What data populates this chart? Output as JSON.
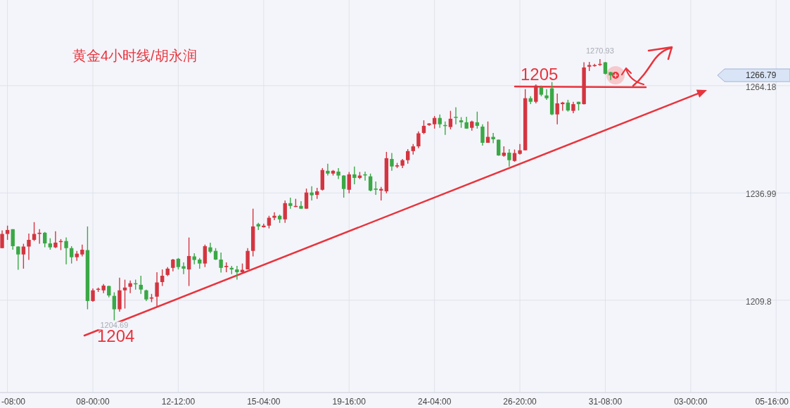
{
  "chart_data": {
    "type": "candlestick",
    "title": "黄金4小时线/胡永润",
    "categories": [
      null,
      "-08:00",
      null,
      null,
      null,
      null,
      null,
      null,
      null,
      null,
      null,
      null,
      null,
      null,
      null,
      null,
      null,
      "08-00:00",
      null,
      null,
      null,
      null,
      null,
      null,
      null,
      null,
      null,
      null,
      null,
      null,
      null,
      null,
      null,
      "12-12:00",
      null,
      null,
      null,
      null,
      null,
      null,
      null,
      null,
      null,
      null,
      null,
      null,
      null,
      null,
      null,
      "15-04:00",
      null,
      null,
      null,
      null,
      null,
      null,
      null,
      null,
      null,
      null,
      null,
      null,
      null,
      null,
      null,
      "19-16:00",
      null,
      null,
      null,
      null,
      null,
      null,
      null,
      null,
      null,
      null,
      null,
      null,
      null,
      null,
      null,
      "24-04:00",
      null,
      null,
      null,
      null,
      null,
      null,
      null,
      null,
      null,
      null,
      null,
      null,
      null,
      null,
      null,
      "26-20:00",
      null,
      null,
      null,
      null,
      null,
      null,
      null,
      null,
      null,
      null,
      null,
      null,
      null,
      null,
      null,
      "31-08:00",
      null,
      null,
      null,
      null,
      null,
      null,
      null,
      null,
      null,
      null,
      null,
      null,
      null,
      null,
      null,
      "03-00:00",
      null,
      null,
      null,
      null,
      null,
      null,
      null,
      null,
      null,
      null,
      null,
      null,
      null,
      null,
      null,
      "05-16:00",
      null
    ],
    "ohlc": [
      [
        1223.0,
        1227.5,
        1223.0,
        1226.6
      ],
      [
        1226.6,
        1228.7,
        1225.1,
        1227.6
      ],
      [
        1227.8,
        1227.8,
        1222.6,
        1223.5
      ],
      [
        1223.4,
        1223.5,
        1217.5,
        1221.4
      ],
      [
        1221.4,
        1224.1,
        1217.8,
        1223.4
      ],
      [
        1223.4,
        1226.7,
        1220.0,
        1225.1
      ],
      [
        1225.1,
        1229.6,
        1224.8,
        1226.6
      ],
      [
        1226.6,
        1227.8,
        1224.1,
        1226.9
      ],
      [
        1226.9,
        1227.1,
        1223.2,
        1224.2
      ],
      [
        1224.2,
        1225.5,
        1222.6,
        1223.2
      ],
      [
        1223.2,
        1227.3,
        1223.0,
        1224.4
      ],
      [
        1224.6,
        1225.3,
        1222.5,
        1224.8
      ],
      [
        1224.8,
        1225.7,
        1218.9,
        1223.0
      ],
      [
        1223.0,
        1223.5,
        1219.1,
        1220.7
      ],
      [
        1220.7,
        1222.3,
        1219.8,
        1221.6
      ],
      [
        1221.4,
        1223.9,
        1220.9,
        1222.6
      ],
      [
        1222.5,
        1228.5,
        1207.5,
        1209.6
      ],
      [
        1209.6,
        1212.8,
        1209.4,
        1212.3
      ],
      [
        1212.5,
        1213.0,
        1211.9,
        1212.7
      ],
      [
        1212.3,
        1213.9,
        1211.6,
        1213.5
      ],
      [
        1213.4,
        1213.5,
        1210.5,
        1211.0
      ],
      [
        1210.9,
        1211.8,
        1204.69,
        1207.5
      ],
      [
        1207.5,
        1215.5,
        1206.9,
        1212.3
      ],
      [
        1212.3,
        1215.0,
        1207.7,
        1213.0
      ],
      [
        1213.2,
        1214.8,
        1211.6,
        1214.1
      ],
      [
        1214.1,
        1215.0,
        1212.5,
        1213.9
      ],
      [
        1213.7,
        1216.0,
        1211.4,
        1212.5
      ],
      [
        1212.3,
        1212.5,
        1209.6,
        1210.0
      ],
      [
        1210.2,
        1211.4,
        1209.3,
        1210.5
      ],
      [
        1210.7,
        1216.9,
        1208.2,
        1214.3
      ],
      [
        1214.4,
        1217.6,
        1213.4,
        1216.0
      ],
      [
        1216.2,
        1218.2,
        1215.9,
        1217.8
      ],
      [
        1218.0,
        1220.3,
        1217.1,
        1220.1
      ],
      [
        1220.3,
        1220.5,
        1217.6,
        1218.2
      ],
      [
        1218.4,
        1219.4,
        1216.4,
        1217.8
      ],
      [
        1217.6,
        1225.7,
        1213.4,
        1221.0
      ],
      [
        1220.9,
        1221.7,
        1218.9,
        1220.0
      ],
      [
        1220.1,
        1220.5,
        1217.8,
        1219.1
      ],
      [
        1219.1,
        1223.9,
        1218.2,
        1223.5
      ],
      [
        1223.2,
        1224.4,
        1221.7,
        1222.1
      ],
      [
        1222.3,
        1223.0,
        1220.0,
        1220.1
      ],
      [
        1220.1,
        1221.9,
        1216.8,
        1218.0
      ],
      [
        1218.2,
        1219.4,
        1216.9,
        1218.5
      ],
      [
        1218.0,
        1218.5,
        1216.4,
        1217.6
      ],
      [
        1217.6,
        1218.5,
        1215.0,
        1216.9
      ],
      [
        1216.9,
        1219.1,
        1216.8,
        1217.5
      ],
      [
        1217.6,
        1223.0,
        1217.6,
        1222.3
      ],
      [
        1222.3,
        1233.0,
        1220.9,
        1228.5
      ],
      [
        1229.1,
        1229.4,
        1227.6,
        1228.5
      ],
      [
        1228.3,
        1229.2,
        1228.2,
        1228.7
      ],
      [
        1228.7,
        1231.2,
        1228.0,
        1230.7
      ],
      [
        1230.7,
        1232.1,
        1230.1,
        1231.2
      ],
      [
        1231.2,
        1231.5,
        1229.4,
        1230.3
      ],
      [
        1230.3,
        1235.1,
        1229.4,
        1234.4
      ],
      [
        1234.4,
        1235.8,
        1233.0,
        1233.7
      ],
      [
        1233.5,
        1235.5,
        1233.4,
        1233.7
      ],
      [
        1233.7,
        1234.9,
        1233.0,
        1233.0
      ],
      [
        1233.0,
        1238.1,
        1233.0,
        1237.1
      ],
      [
        1237.1,
        1238.7,
        1235.1,
        1236.4
      ],
      [
        1236.5,
        1238.3,
        1235.5,
        1237.4
      ],
      [
        1237.8,
        1243.3,
        1237.6,
        1242.8
      ],
      [
        1242.6,
        1244.4,
        1241.4,
        1241.9
      ],
      [
        1241.9,
        1242.8,
        1241.4,
        1242.6
      ],
      [
        1242.4,
        1243.3,
        1240.5,
        1241.4
      ],
      [
        1241.4,
        1241.5,
        1235.8,
        1238.0
      ],
      [
        1237.8,
        1242.3,
        1236.9,
        1241.7
      ],
      [
        1241.7,
        1243.7,
        1239.2,
        1240.8
      ],
      [
        1240.8,
        1242.3,
        1240.5,
        1241.4
      ],
      [
        1241.7,
        1242.4,
        1240.1,
        1241.5
      ],
      [
        1241.2,
        1241.9,
        1237.4,
        1237.6
      ],
      [
        1238.1,
        1239.9,
        1236.5,
        1237.8
      ],
      [
        1237.6,
        1238.5,
        1235.1,
        1238.0
      ],
      [
        1237.4,
        1247.4,
        1236.9,
        1245.8
      ],
      [
        1245.6,
        1247.1,
        1242.6,
        1243.7
      ],
      [
        1243.7,
        1244.6,
        1243.3,
        1244.0
      ],
      [
        1243.9,
        1245.6,
        1243.3,
        1245.3
      ],
      [
        1245.3,
        1248.1,
        1244.4,
        1247.6
      ],
      [
        1247.6,
        1249.4,
        1246.7,
        1248.8
      ],
      [
        1248.8,
        1252.6,
        1248.3,
        1252.1
      ],
      [
        1252.2,
        1255.4,
        1251.9,
        1254.0
      ],
      [
        1254.2,
        1254.7,
        1254.0,
        1254.6
      ],
      [
        1254.4,
        1256.5,
        1253.3,
        1256.0
      ],
      [
        1256.0,
        1256.9,
        1253.5,
        1254.4
      ],
      [
        1254.2,
        1255.1,
        1251.7,
        1254.0
      ],
      [
        1253.7,
        1257.8,
        1253.1,
        1255.8
      ],
      [
        1256.3,
        1258.7,
        1254.4,
        1256.1
      ],
      [
        1255.4,
        1256.2,
        1253.5,
        1254.9
      ],
      [
        1254.9,
        1256.3,
        1253.3,
        1253.3
      ],
      [
        1253.5,
        1255.3,
        1252.8,
        1255.1
      ],
      [
        1254.9,
        1257.6,
        1253.3,
        1254.0
      ],
      [
        1253.8,
        1254.4,
        1249.0,
        1249.7
      ],
      [
        1249.7,
        1255.1,
        1249.7,
        1251.2
      ],
      [
        1251.2,
        1252.2,
        1249.6,
        1250.6
      ],
      [
        1250.5,
        1250.5,
        1246.4,
        1246.5
      ],
      [
        1246.4,
        1248.8,
        1246.2,
        1247.2
      ],
      [
        1247.2,
        1248.1,
        1243.7,
        1245.3
      ],
      [
        1245.1,
        1248.0,
        1244.9,
        1247.1
      ],
      [
        1246.9,
        1249.4,
        1246.7,
        1247.8
      ],
      [
        1247.8,
        1263.3,
        1247.8,
        1261.0
      ],
      [
        1261.0,
        1261.5,
        1259.5,
        1260.1
      ],
      [
        1260.1,
        1264.5,
        1259.7,
        1264.2
      ],
      [
        1263.8,
        1264.2,
        1261.5,
        1261.9
      ],
      [
        1261.7,
        1263.3,
        1260.6,
        1261.0
      ],
      [
        1263.5,
        1265.1,
        1256.7,
        1256.9
      ],
      [
        1256.9,
        1262.2,
        1254.4,
        1259.7
      ],
      [
        1259.5,
        1260.1,
        1257.8,
        1259.9
      ],
      [
        1259.9,
        1260.6,
        1257.6,
        1257.9
      ],
      [
        1257.8,
        1260.1,
        1257.2,
        1259.5
      ],
      [
        1260.1,
        1260.1,
        1257.9,
        1259.5
      ],
      [
        1259.5,
        1270.1,
        1259.4,
        1268.8
      ],
      [
        1269.0,
        1270.2,
        1267.9,
        1269.4
      ],
      [
        1269.2,
        1269.7,
        1269.0,
        1269.4
      ],
      [
        1269.5,
        1270.93,
        1269.2,
        1269.7
      ],
      [
        1270.1,
        1270.2,
        1267.0,
        1267.2
      ],
      [
        1267.6,
        1267.7,
        1265.6,
        1266.79
      ],
      null,
      null,
      null,
      null,
      null,
      null,
      null,
      null,
      null,
      null,
      null,
      null,
      null,
      null,
      null,
      null,
      null,
      null,
      null,
      null,
      null,
      null,
      null,
      null,
      null,
      null,
      null,
      null,
      null,
      null,
      null,
      null
    ],
    "colors": [
      "#d33540",
      "#d33540",
      "#3aa846",
      "#3aa846",
      "#d33540",
      "#d33540",
      "#d33540",
      "#d33540",
      "#3aa846",
      "#3aa846",
      "#d33540",
      "#d33540",
      "#3aa846",
      "#3aa846",
      "#d33540",
      "#d33540",
      "#3aa846",
      "#d33540",
      "#d33540",
      "#d33540",
      "#3aa846",
      "#3aa846",
      "#d33540",
      "#d33540",
      "#d33540",
      "#3aa846",
      "#3aa846",
      "#3aa846",
      "#d33540",
      "#d33540",
      "#d33540",
      "#d33540",
      "#d33540",
      "#3aa846",
      "#3aa846",
      "#d33540",
      "#3aa846",
      "#3aa846",
      "#d33540",
      "#3aa846",
      "#3aa846",
      "#3aa846",
      "#d33540",
      "#3aa846",
      "#3aa846",
      "#d33540",
      "#d33540",
      "#d33540",
      "#3aa846",
      "#d33540",
      "#d33540",
      "#d33540",
      "#3aa846",
      "#d33540",
      "#3aa846",
      "#d33540",
      "#3aa846",
      "#d33540",
      "#3aa846",
      "#d33540",
      "#d33540",
      "#3aa846",
      "#d33540",
      "#3aa846",
      "#3aa846",
      "#d33540",
      "#3aa846",
      "#d33540",
      "#3aa846",
      "#3aa846",
      "#3aa846",
      "#d33540",
      "#d33540",
      "#3aa846",
      "#d33540",
      "#d33540",
      "#d33540",
      "#d33540",
      "#d33540",
      "#d33540",
      "#d33540",
      "#d33540",
      "#3aa846",
      "#3aa846",
      "#d33540",
      "#3aa846",
      "#3aa846",
      "#3aa846",
      "#d33540",
      "#3aa846",
      "#3aa846",
      "#d33540",
      "#3aa846",
      "#3aa846",
      "#d33540",
      "#3aa846",
      "#d33540",
      "#d33540",
      "#d33540",
      "#3aa846",
      "#d33540",
      "#3aa846",
      "#3aa846",
      "#3aa846",
      "#d33540",
      "#d33540",
      "#3aa846",
      "#d33540",
      "#3aa846",
      "#d33540",
      "#d33540",
      "#d33540",
      "#d33540",
      "#3aa846",
      "#3aa846",
      null,
      null,
      null,
      null,
      null,
      null,
      null,
      null,
      null,
      null,
      null,
      null,
      null,
      null,
      null,
      null,
      null,
      null,
      null,
      null,
      null,
      null,
      null,
      null,
      null,
      null,
      null,
      null,
      null,
      null,
      null,
      null
    ],
    "ylim": [
      1186.4,
      1285.9
    ],
    "yticks": [
      1209.8,
      1236.99,
      1264.18
    ],
    "grid": true,
    "annotations": [
      {
        "text": "1204.69",
        "y": 1204.69
      },
      {
        "text": "1270.93",
        "y": 1270.93
      },
      "1204",
      "1205",
      "1266.79"
    ]
  }
}
